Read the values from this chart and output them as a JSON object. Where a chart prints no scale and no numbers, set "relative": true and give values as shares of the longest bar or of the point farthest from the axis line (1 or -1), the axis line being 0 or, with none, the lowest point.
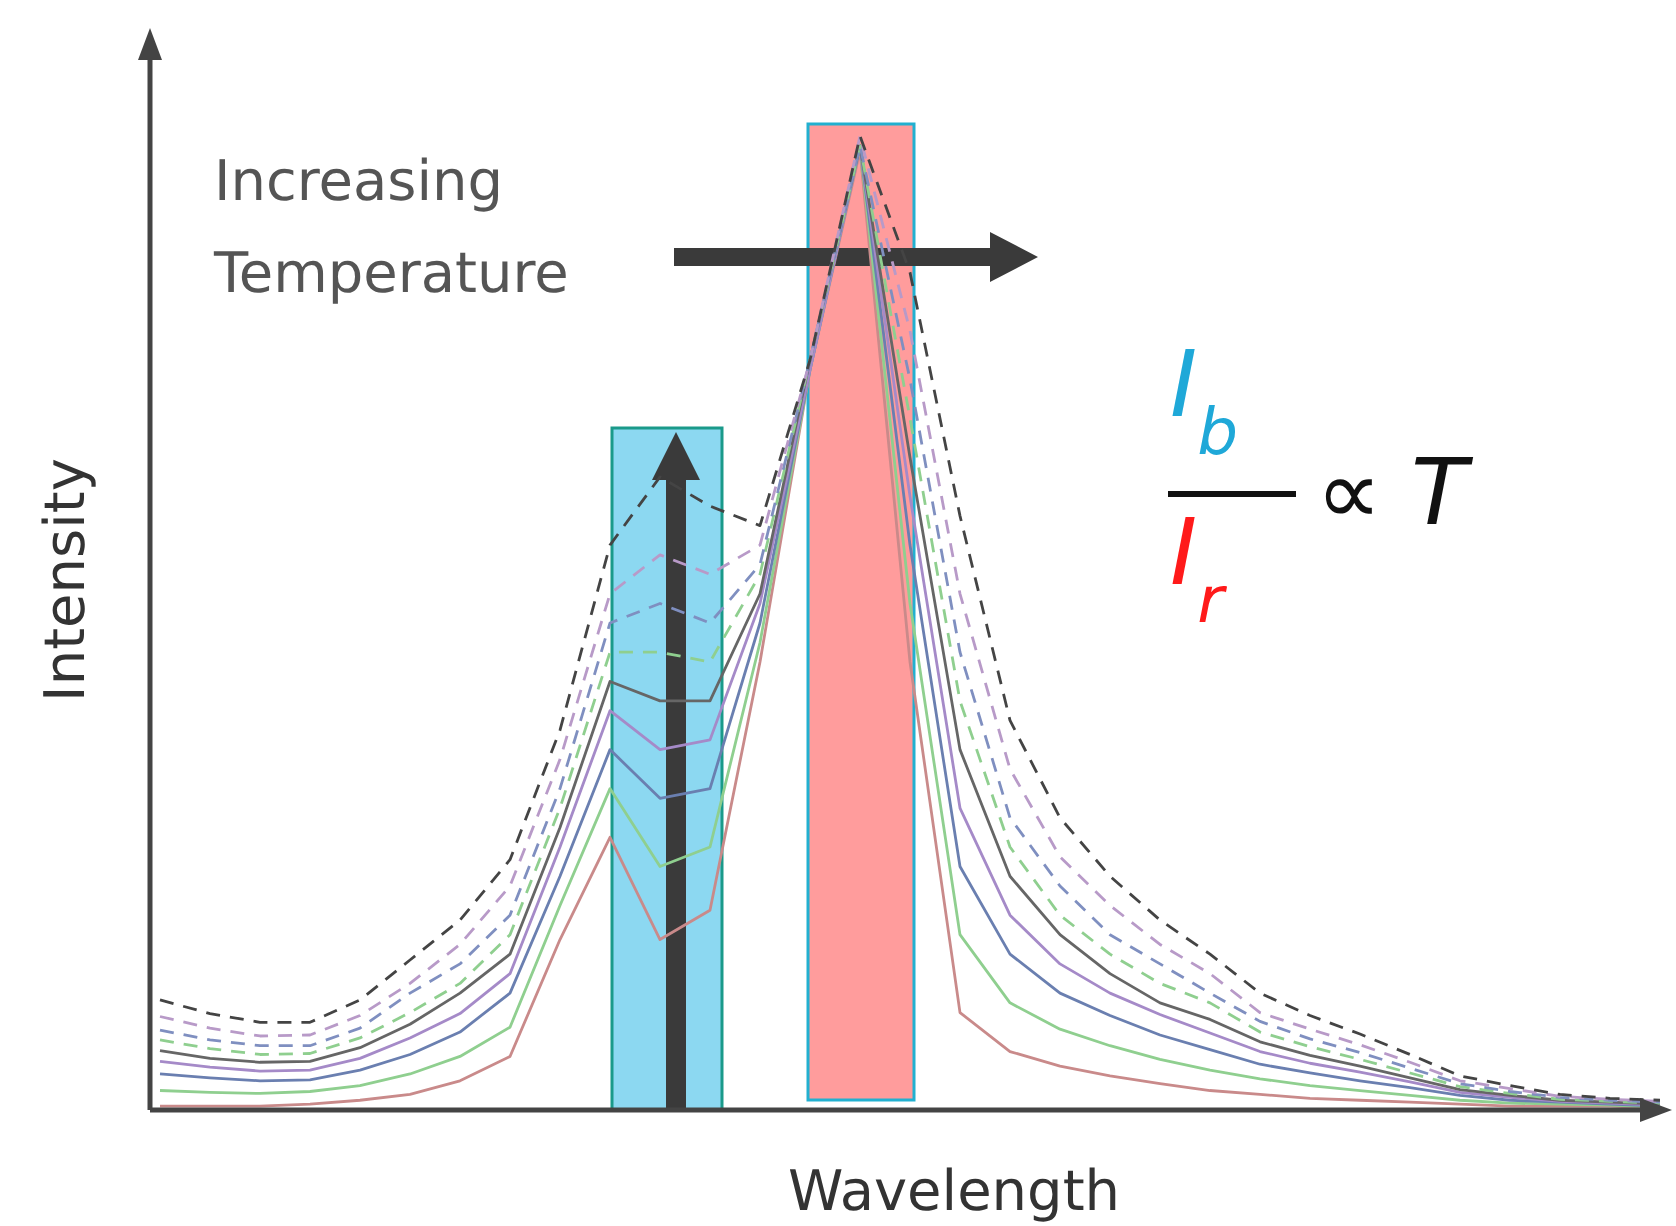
{
  "chart_data": {
    "type": "line",
    "relative": true,
    "xlabel": "Wavelength",
    "ylabel": "Intensity",
    "marker": "none",
    "annotations": [
      "Increasing Temperature",
      "I$_{b}$",
      "I$_{r}$",
      "∝ T"
    ],
    "categories": [
      null,
      null,
      null,
      null,
      null,
      null,
      null,
      null,
      null,
      null,
      null,
      null,
      null,
      null,
      null,
      null,
      null,
      null,
      null,
      null,
      null,
      null,
      null,
      null,
      null,
      null,
      null,
      null,
      null,
      null,
      null
    ],
    "series": [
      {
        "color": "#c98a8a",
        "line_style": "solid",
        "values": [
          0.004,
          0.004,
          0.004,
          0.006,
          0.01,
          0.016,
          0.03,
          0.055,
          0.175,
          0.28,
          0.175,
          0.205,
          0.46,
          0.76,
          0.985,
          0.46,
          0.1,
          0.06,
          0.045,
          0.035,
          0.027,
          0.02,
          0.016,
          0.012,
          0.01,
          0.008,
          0.006,
          0.004,
          0.004,
          0.004,
          0.002
        ]
      },
      {
        "color": "#8fcf8f",
        "line_style": "solid",
        "values": [
          0.02,
          0.018,
          0.017,
          0.019,
          0.025,
          0.037,
          0.055,
          0.085,
          0.21,
          0.33,
          0.25,
          0.27,
          0.48,
          0.76,
          0.99,
          0.52,
          0.18,
          0.11,
          0.083,
          0.066,
          0.052,
          0.041,
          0.032,
          0.025,
          0.02,
          0.015,
          0.01,
          0.007,
          0.006,
          0.005,
          0.003
        ]
      },
      {
        "color": "#6a7fb0",
        "line_style": "solid",
        "values": [
          0.037,
          0.033,
          0.03,
          0.031,
          0.041,
          0.057,
          0.08,
          0.12,
          0.24,
          0.37,
          0.32,
          0.33,
          0.5,
          0.76,
          0.99,
          0.58,
          0.25,
          0.16,
          0.12,
          0.097,
          0.077,
          0.062,
          0.047,
          0.038,
          0.03,
          0.023,
          0.015,
          0.01,
          0.008,
          0.006,
          0.004
        ]
      },
      {
        "color": "#a58ac8",
        "line_style": "solid",
        "values": [
          0.05,
          0.044,
          0.04,
          0.041,
          0.053,
          0.074,
          0.099,
          0.14,
          0.27,
          0.41,
          0.37,
          0.38,
          0.52,
          0.76,
          0.99,
          0.63,
          0.31,
          0.2,
          0.15,
          0.12,
          0.098,
          0.079,
          0.06,
          0.048,
          0.039,
          0.029,
          0.018,
          0.013,
          0.009,
          0.007,
          0.005
        ]
      },
      {
        "color": "#666666",
        "line_style": "solid",
        "values": [
          0.061,
          0.053,
          0.049,
          0.05,
          0.064,
          0.088,
          0.12,
          0.16,
          0.29,
          0.44,
          0.42,
          0.42,
          0.53,
          0.77,
          0.99,
          0.67,
          0.37,
          0.24,
          0.18,
          0.14,
          0.11,
          0.093,
          0.07,
          0.056,
          0.045,
          0.033,
          0.021,
          0.015,
          0.01,
          0.008,
          0.006
        ]
      },
      {
        "color": "#8fcf8f",
        "line_style": "dashed",
        "values": [
          0.072,
          0.063,
          0.057,
          0.058,
          0.074,
          0.1,
          0.13,
          0.18,
          0.31,
          0.47,
          0.47,
          0.46,
          0.55,
          0.77,
          0.99,
          0.71,
          0.42,
          0.27,
          0.2,
          0.16,
          0.13,
          0.11,
          0.08,
          0.065,
          0.052,
          0.038,
          0.024,
          0.017,
          0.011,
          0.009,
          0.007
        ]
      },
      {
        "color": "#7f8fc0",
        "line_style": "dashed",
        "values": [
          0.082,
          0.072,
          0.066,
          0.066,
          0.084,
          0.12,
          0.15,
          0.2,
          0.33,
          0.5,
          0.52,
          0.5,
          0.56,
          0.77,
          0.99,
          0.75,
          0.47,
          0.3,
          0.23,
          0.18,
          0.15,
          0.12,
          0.091,
          0.073,
          0.059,
          0.043,
          0.027,
          0.019,
          0.013,
          0.01,
          0.008
        ]
      },
      {
        "color": "#b89ac8",
        "line_style": "dashed",
        "values": [
          0.096,
          0.084,
          0.076,
          0.077,
          0.097,
          0.13,
          0.17,
          0.23,
          0.36,
          0.53,
          0.57,
          0.55,
          0.58,
          0.77,
          1.0,
          0.8,
          0.53,
          0.35,
          0.26,
          0.21,
          0.17,
          0.14,
          0.1,
          0.083,
          0.067,
          0.049,
          0.03,
          0.022,
          0.014,
          0.011,
          0.009
        ]
      },
      {
        "color": "#444444",
        "line_style": "dashed",
        "values": [
          0.113,
          0.099,
          0.09,
          0.09,
          0.113,
          0.154,
          0.195,
          0.257,
          0.39,
          0.58,
          0.65,
          0.62,
          0.6,
          0.77,
          1.0,
          0.86,
          0.61,
          0.4,
          0.3,
          0.24,
          0.195,
          0.16,
          0.12,
          0.097,
          0.078,
          0.057,
          0.035,
          0.025,
          0.016,
          0.012,
          0.01
        ]
      }
    ]
  }
}
